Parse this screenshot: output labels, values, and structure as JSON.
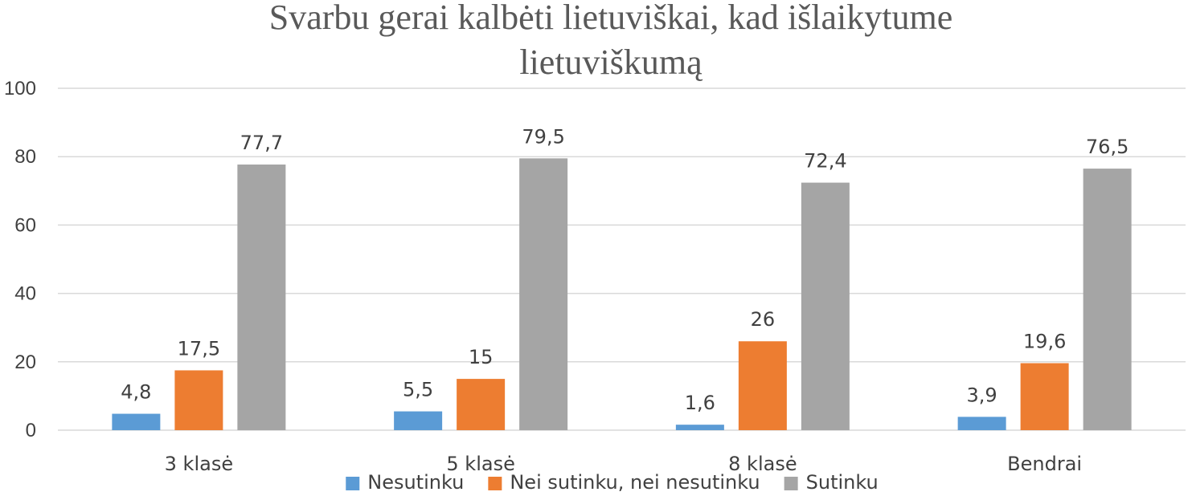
{
  "chart_data": {
    "type": "bar",
    "title_lines": [
      "Svarbu gerai kalbėti lietuviškai, kad išlaikytume",
      "lietuviškumą"
    ],
    "categories": [
      "3 klasė",
      "5 klasė",
      "8 klasė",
      "Bendrai"
    ],
    "series": [
      {
        "name": "Nesutinku",
        "color": "#5b9bd5",
        "values": [
          4.8,
          5.5,
          1.6,
          3.9
        ],
        "labels": [
          "4,8",
          "5,5",
          "1,6",
          "3,9"
        ]
      },
      {
        "name": "Nei sutinku, nei nesutinku",
        "color": "#ed7d31",
        "values": [
          17.5,
          15,
          26,
          19.6
        ],
        "labels": [
          "17,5",
          "15",
          "26",
          "19,6"
        ]
      },
      {
        "name": "Sutinku",
        "color": "#a5a5a5",
        "values": [
          77.7,
          79.5,
          72.4,
          76.5
        ],
        "labels": [
          "77,7",
          "79,5",
          "72,4",
          "76,5"
        ]
      }
    ],
    "ylim": [
      0,
      100
    ],
    "yticks": [
      0,
      20,
      40,
      60,
      80,
      100
    ],
    "grid": true,
    "legend_position": "bottom"
  }
}
